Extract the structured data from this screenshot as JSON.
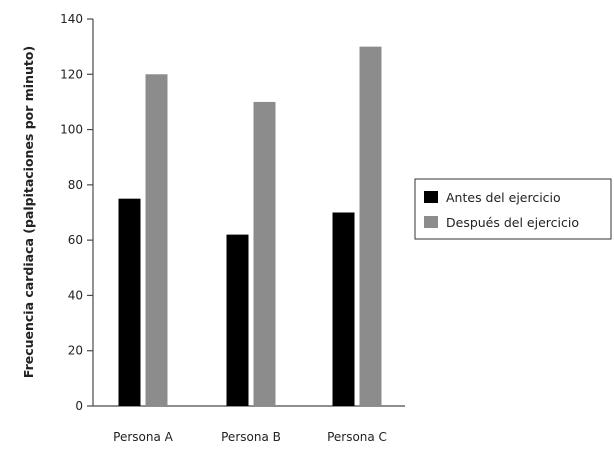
{
  "chart_data": {
    "type": "bar",
    "categories": [
      "Persona A",
      "Persona B",
      "Persona C"
    ],
    "series": [
      {
        "name": "Antes del ejercicio",
        "values": [
          75,
          62,
          70
        ],
        "color": "#000000"
      },
      {
        "name": "Después del ejercicio",
        "values": [
          120,
          110,
          130
        ],
        "color": "#8c8c8c"
      }
    ],
    "title": "",
    "xlabel": "",
    "ylabel": "Frecuencia cardiaca (palpitaciones por minuto)",
    "ylim": [
      0,
      140
    ],
    "yticks": [
      0,
      20,
      40,
      60,
      80,
      100,
      120,
      140
    ],
    "grid": false,
    "legend_position": "right"
  }
}
